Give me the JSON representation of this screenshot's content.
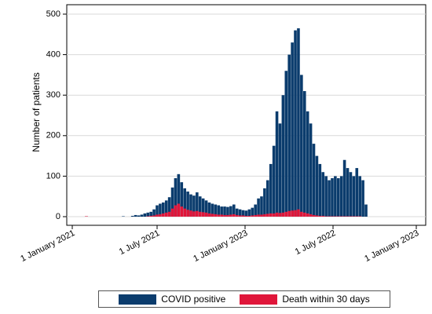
{
  "chart_data": {
    "type": "bar",
    "ylabel": "Number of patients",
    "xlabel": "",
    "ylim": [
      0,
      500
    ],
    "yticks": [
      0,
      100,
      200,
      300,
      400,
      500
    ],
    "x_tick_labels": [
      "1 January 2021",
      "1 July 2021",
      "1 January 2023",
      "1 July 2022",
      "1 January 2023"
    ],
    "legend_position": "bottom",
    "series": [
      {
        "name": "COVID positive",
        "color": "#0b3c6d",
        "values": [
          1,
          0,
          0,
          0,
          0,
          0,
          0,
          0,
          0,
          0,
          0,
          0,
          1,
          0,
          0,
          2,
          4,
          3,
          5,
          8,
          10,
          12,
          18,
          28,
          32,
          35,
          40,
          48,
          72,
          95,
          105,
          85,
          70,
          62,
          55,
          52,
          60,
          50,
          45,
          40,
          35,
          32,
          30,
          28,
          25,
          25,
          24,
          26,
          30,
          20,
          18,
          16,
          15,
          18,
          22,
          30,
          45,
          50,
          70,
          90,
          130,
          175,
          260,
          230,
          300,
          360,
          400,
          430,
          460,
          465,
          350,
          310,
          260,
          230,
          180,
          150,
          130,
          110,
          100,
          90,
          95,
          100,
          95,
          100,
          140,
          120,
          110,
          100,
          120,
          100,
          90,
          30
        ]
      },
      {
        "name": "Death within 30 days",
        "color": "#e0163a",
        "values": [
          1,
          0,
          0,
          0,
          0,
          0,
          0,
          0,
          0,
          0,
          0,
          0,
          0,
          0,
          0,
          0,
          0,
          0,
          0,
          0,
          1,
          2,
          3,
          5,
          6,
          8,
          10,
          12,
          20,
          28,
          32,
          25,
          20,
          17,
          15,
          13,
          14,
          12,
          11,
          10,
          8,
          7,
          6,
          5,
          5,
          4,
          4,
          5,
          6,
          4,
          3,
          3,
          2,
          2,
          3,
          4,
          5,
          5,
          6,
          7,
          8,
          8,
          10,
          9,
          10,
          12,
          14,
          15,
          16,
          18,
          12,
          10,
          8,
          6,
          4,
          3,
          2,
          2,
          1,
          1,
          1,
          1,
          1,
          1,
          1,
          1,
          1,
          1,
          1,
          1,
          0,
          0
        ]
      }
    ]
  }
}
